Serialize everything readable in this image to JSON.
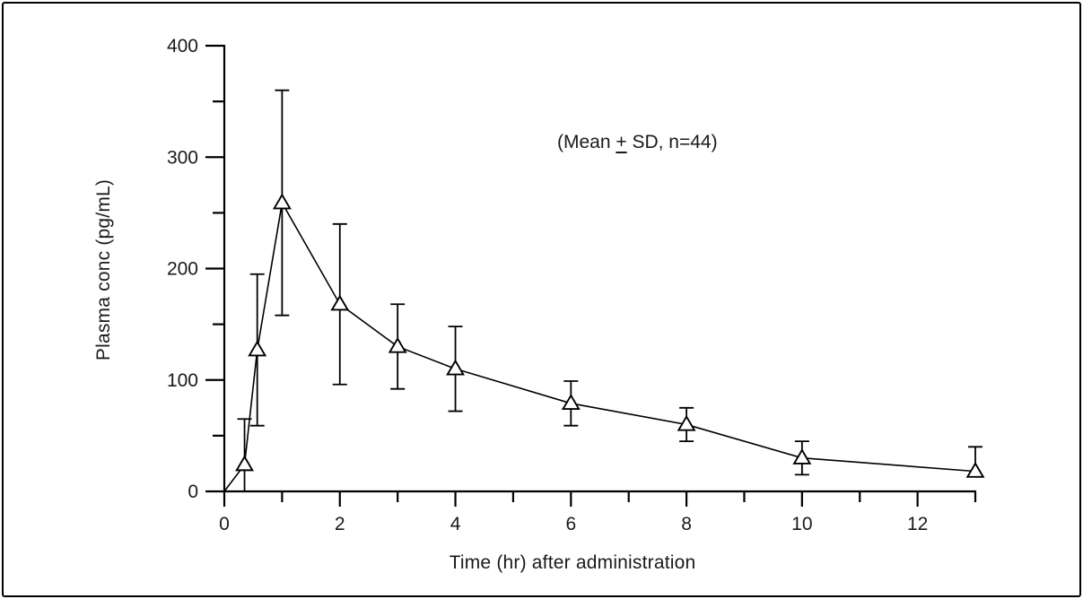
{
  "colors": {
    "ink": "#1a1a1a",
    "line": "#000000",
    "background": "#ffffff",
    "marker_fill": "#ffffff",
    "frame": "#000000"
  },
  "chart_data": {
    "type": "line",
    "title": "",
    "xlabel": "Time (hr) after administration",
    "ylabel": "Plasma conc (pg/mL)",
    "annotation": {
      "full_text": "(Mean ± SD, n=44)",
      "pre": "(Mean ",
      "plus_minus": "+",
      "post": " SD, n=44)"
    },
    "xlim": [
      0,
      13
    ],
    "ylim": [
      0,
      400
    ],
    "x_major_ticks": [
      0,
      2,
      4,
      6,
      8,
      10,
      12
    ],
    "x_minor_ticks": [
      1,
      3,
      5,
      7,
      9,
      11,
      13
    ],
    "y_major_ticks": [
      0,
      100,
      200,
      300,
      400
    ],
    "y_minor_ticks": [
      50,
      150,
      250,
      350
    ],
    "grid": false,
    "legend_position": "none",
    "marker": "open-triangle-up",
    "line_starts_at_origin": true,
    "series": [
      {
        "name": "plasma-concentration-mean-sd",
        "points": [
          {
            "t": 0.35,
            "mean": 24,
            "sd": 41,
            "lower_bar": "clipped-to-axis"
          },
          {
            "t": 0.57,
            "mean": 127,
            "sd": 68,
            "lower_bar": "cap"
          },
          {
            "t": 1,
            "mean": 259,
            "sd": 101,
            "lower_bar": "cap"
          },
          {
            "t": 2,
            "mean": 168,
            "sd": 72,
            "lower_bar": "cap"
          },
          {
            "t": 3,
            "mean": 130,
            "sd": 38,
            "lower_bar": "cap"
          },
          {
            "t": 4,
            "mean": 110,
            "sd": 38,
            "lower_bar": "cap"
          },
          {
            "t": 6,
            "mean": 79,
            "sd": 20,
            "lower_bar": "cap"
          },
          {
            "t": 8,
            "mean": 60,
            "sd": 15,
            "lower_bar": "cap"
          },
          {
            "t": 10,
            "mean": 30,
            "sd": 15,
            "lower_bar": "cap"
          },
          {
            "t": 13,
            "mean": 18,
            "sd": 22,
            "lower_bar": "none"
          }
        ]
      }
    ]
  }
}
